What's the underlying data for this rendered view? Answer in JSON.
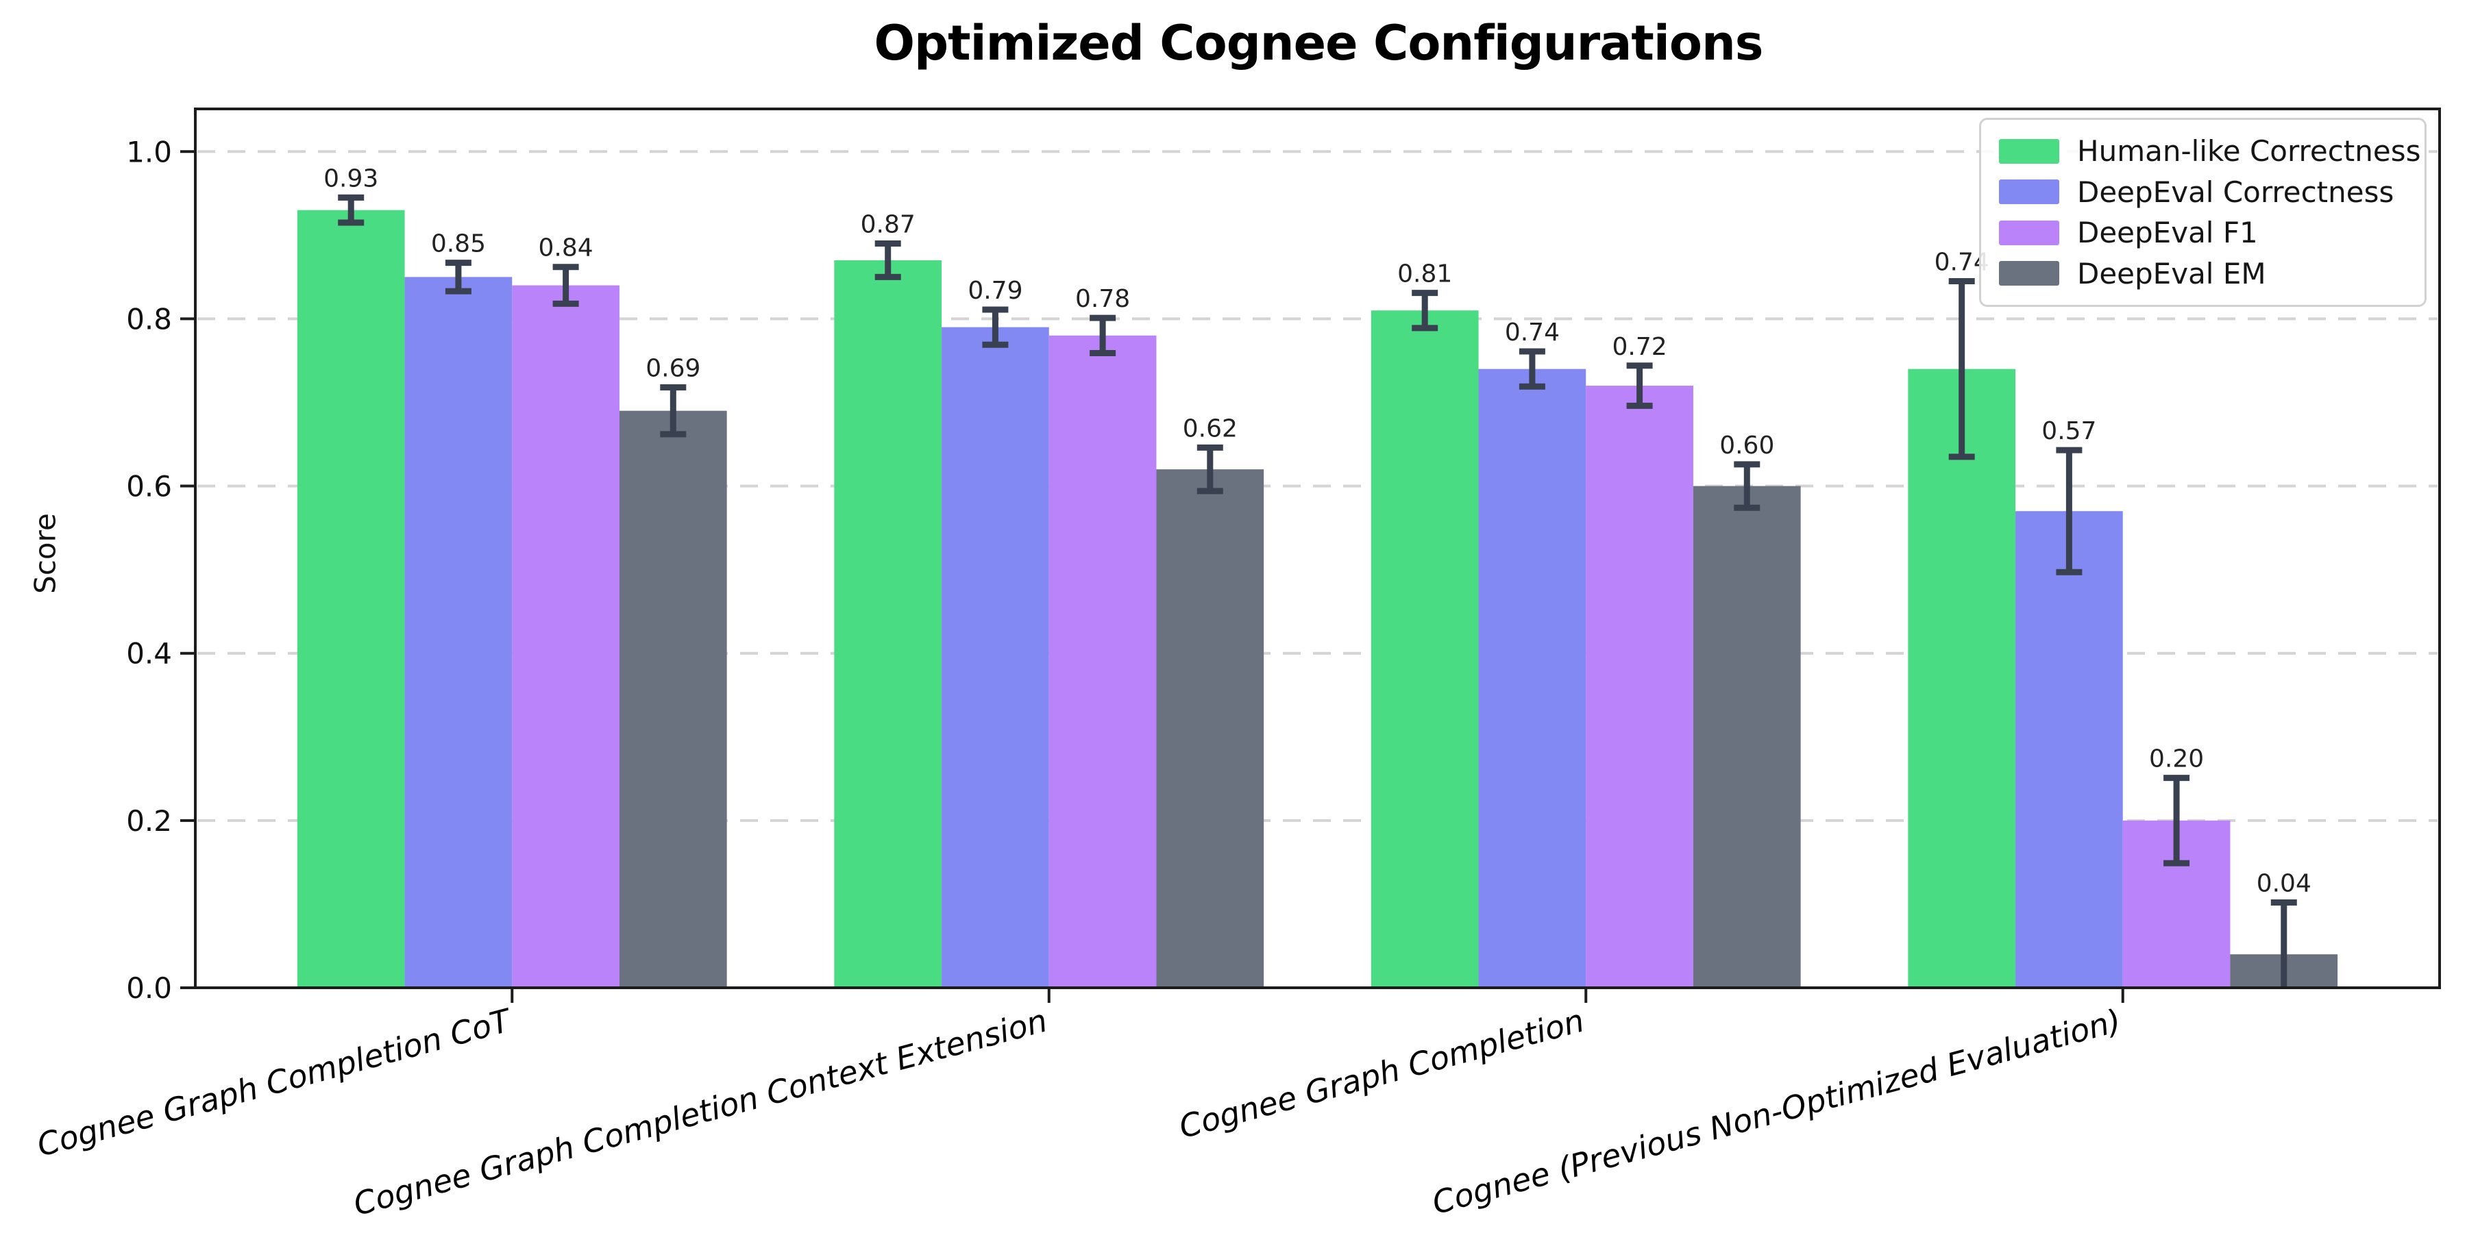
{
  "title": "Optimized Cognee Configurations",
  "chart_data": {
    "type": "bar",
    "title": "Optimized Cognee Configurations",
    "xlabel": "",
    "ylabel": "Score",
    "ylim": [
      0,
      1.051
    ],
    "yticks": [
      "0.0",
      "0.2",
      "0.4",
      "0.6",
      "0.8",
      "1.0"
    ],
    "grid": "horizontal dashed, light gray",
    "legend_position": "upper right",
    "value_label_format": ".2f",
    "categories": [
      "Cognee Graph Completion CoT",
      "Cognee Graph Completion Context Extension",
      "Cognee Graph Completion",
      "Cognee (Previous Non-Optimized Evaluation)"
    ],
    "series": [
      {
        "name": "Human-like Correctness",
        "color": "#4adc82",
        "values": [
          0.93,
          0.87,
          0.81,
          0.74
        ],
        "errors": [
          0.015,
          0.02,
          0.021,
          0.105
        ]
      },
      {
        "name": "DeepEval Correctness",
        "color": "#8289f2",
        "values": [
          0.85,
          0.79,
          0.74,
          0.57
        ],
        "errors": [
          0.017,
          0.021,
          0.021,
          0.073
        ]
      },
      {
        "name": "DeepEval F1",
        "color": "#bb83fa",
        "values": [
          0.84,
          0.78,
          0.72,
          0.2
        ],
        "errors": [
          0.022,
          0.021,
          0.024,
          0.051
        ]
      },
      {
        "name": "DeepEval EM",
        "color": "#6a7280",
        "values": [
          0.69,
          0.62,
          0.6,
          0.04
        ],
        "errors": [
          0.028,
          0.026,
          0.026,
          0.062
        ]
      }
    ],
    "error_bar_color": "#394050",
    "axis_color": "#1c1c1c",
    "grid_color": "#d4d4d4",
    "tick_label_color": "#111111",
    "value_label_color": "#222222"
  }
}
